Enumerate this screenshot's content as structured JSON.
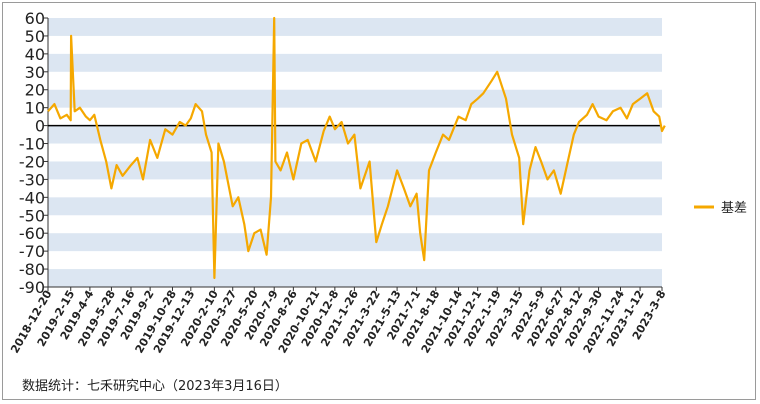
{
  "chart_data": {
    "type": "line",
    "title": "",
    "xlabel": "",
    "ylabel": "",
    "ylim": [
      -90,
      60
    ],
    "yticks": [
      60,
      50,
      40,
      30,
      20,
      10,
      0,
      -10,
      -20,
      -30,
      -40,
      -50,
      -60,
      -70,
      -80,
      -90
    ],
    "grid": "horizontal alternating bands",
    "legend_position": "right",
    "series_color": "#f5a800",
    "x_tick_labels": [
      "2018-12-20",
      "2019-2-15",
      "2019-4-4",
      "2019-5-28",
      "2019-7-16",
      "2019-9-2",
      "2019-10-28",
      "2019-12-13",
      "2020-2-10",
      "2020-3-27",
      "2020-5-20",
      "2020-7-9",
      "2020-8-26",
      "2020-10-21",
      "2020-12-8",
      "2021-1-26",
      "2021-3-22",
      "2021-5-13",
      "2021-7-1",
      "2021-8-18",
      "2021-10-14",
      "2021-12-1",
      "2022-1-19",
      "2022-3-15",
      "2022-5-9",
      "2022-6-27",
      "2022-8-12",
      "2022-9-30",
      "2022-11-24",
      "2023-1-12",
      "2023-3-8"
    ],
    "series": [
      {
        "name": "基差",
        "x": [
          "2018-12-20",
          "2019-1-5",
          "2019-1-20",
          "2019-2-5",
          "2019-2-15",
          "2019-2-16",
          "2019-2-25",
          "2019-3-10",
          "2019-3-25",
          "2019-4-4",
          "2019-4-15",
          "2019-4-30",
          "2019-5-15",
          "2019-5-28",
          "2019-6-10",
          "2019-6-25",
          "2019-7-16",
          "2019-8-1",
          "2019-8-15",
          "2019-9-2",
          "2019-9-20",
          "2019-10-10",
          "2019-10-28",
          "2019-11-15",
          "2019-11-30",
          "2019-12-13",
          "2019-12-25",
          "2020-1-10",
          "2020-1-20",
          "2020-2-3",
          "2020-2-10",
          "2020-2-20",
          "2020-3-5",
          "2020-3-27",
          "2020-4-10",
          "2020-4-25",
          "2020-5-5",
          "2020-5-20",
          "2020-6-5",
          "2020-6-20",
          "2020-7-1",
          "2020-7-9",
          "2020-7-12",
          "2020-7-25",
          "2020-8-10",
          "2020-8-26",
          "2020-9-15",
          "2020-10-1",
          "2020-10-21",
          "2020-11-10",
          "2020-11-25",
          "2020-12-8",
          "2020-12-25",
          "2021-1-10",
          "2021-1-26",
          "2021-2-10",
          "2021-3-5",
          "2021-3-22",
          "2021-4-5",
          "2021-4-20",
          "2021-5-13",
          "2021-5-30",
          "2021-6-15",
          "2021-7-1",
          "2021-7-10",
          "2021-7-20",
          "2021-8-1",
          "2021-8-18",
          "2021-9-5",
          "2021-9-20",
          "2021-10-14",
          "2021-11-1",
          "2021-11-15",
          "2021-12-1",
          "2021-12-15",
          "2022-1-5",
          "2022-1-19",
          "2022-2-10",
          "2022-2-25",
          "2022-3-15",
          "2022-3-25",
          "2022-4-10",
          "2022-4-25",
          "2022-5-9",
          "2022-5-25",
          "2022-6-10",
          "2022-6-27",
          "2022-7-15",
          "2022-7-30",
          "2022-8-12",
          "2022-9-1",
          "2022-9-15",
          "2022-9-30",
          "2022-10-20",
          "2022-11-5",
          "2022-11-24",
          "2022-12-10",
          "2022-12-25",
          "2023-1-12",
          "2023-1-30",
          "2023-2-15",
          "2023-3-1",
          "2023-3-8",
          "2023-3-15"
        ],
        "values": [
          8,
          12,
          4,
          6,
          3,
          50,
          8,
          10,
          5,
          3,
          6,
          -8,
          -20,
          -35,
          -22,
          -28,
          -22,
          -18,
          -30,
          -8,
          -18,
          -2,
          -5,
          2,
          0,
          4,
          12,
          8,
          -5,
          -15,
          -85,
          -10,
          -20,
          -45,
          -40,
          -55,
          -70,
          -60,
          -58,
          -72,
          -40,
          60,
          -20,
          -25,
          -15,
          -30,
          -10,
          -8,
          -20,
          -3,
          5,
          -2,
          2,
          -10,
          -5,
          -35,
          -20,
          -65,
          -55,
          -45,
          -25,
          -35,
          -45,
          -38,
          -60,
          -75,
          -25,
          -15,
          -5,
          -8,
          5,
          3,
          12,
          15,
          18,
          25,
          30,
          15,
          -5,
          -18,
          -55,
          -25,
          -12,
          -20,
          -30,
          -25,
          -38,
          -20,
          -5,
          2,
          6,
          12,
          5,
          3,
          8,
          10,
          4,
          12,
          15,
          18,
          8,
          5,
          -3,
          0
        ]
      }
    ],
    "annotation": "数据统计：七禾研究中心（2023年3月16日）"
  }
}
